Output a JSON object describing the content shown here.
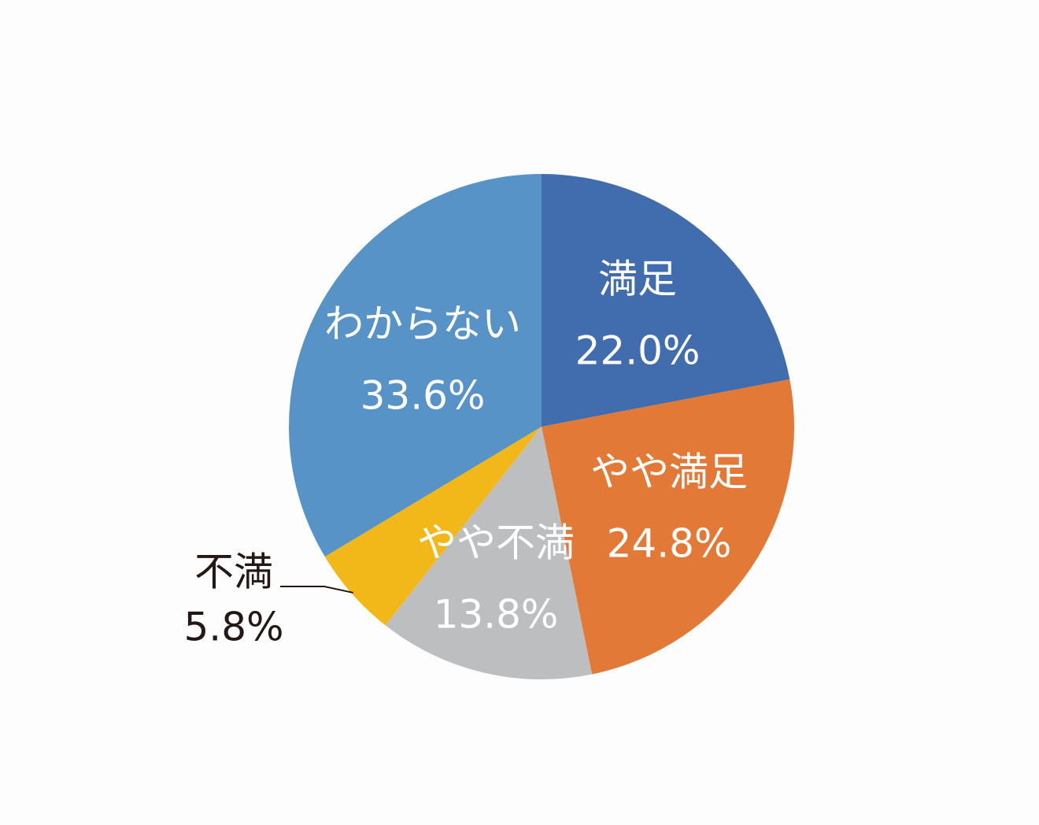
{
  "chart_data": {
    "type": "pie",
    "title": "",
    "start_angle_deg": 0,
    "direction": "clockwise",
    "slices": [
      {
        "name": "満足",
        "value": 22.0,
        "label_value": "22.0%",
        "color": "#416dae",
        "label_color": "#ffffff"
      },
      {
        "name": "やや満足",
        "value": 24.8,
        "label_value": "24.8%",
        "color": "#e27936",
        "label_color": "#ffffff"
      },
      {
        "name": "やや不満",
        "value": 13.8,
        "label_value": "13.8%",
        "color": "#bdbec0",
        "label_color": "#ffffff"
      },
      {
        "name": "不満",
        "value": 5.8,
        "label_value": "5.8%",
        "color": "#f2b81a",
        "label_color": "#231815",
        "label_outside": true
      },
      {
        "name": "わからない",
        "value": 33.6,
        "label_value": "33.6%",
        "color": "#5893c8",
        "label_color": "#ffffff"
      }
    ]
  }
}
